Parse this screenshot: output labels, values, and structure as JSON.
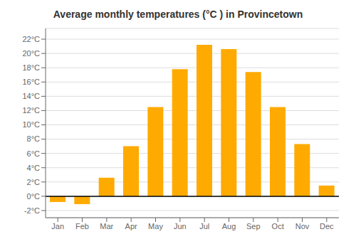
{
  "chart_data": {
    "type": "bar",
    "title": "Average monthly temperatures (°C ) in Provincetown",
    "categories": [
      "Jan",
      "Feb",
      "Mar",
      "Apr",
      "May",
      "Jun",
      "Jul",
      "Aug",
      "Sep",
      "Oct",
      "Nov",
      "Dec"
    ],
    "values": [
      -0.8,
      -1.1,
      2.6,
      7.0,
      12.5,
      17.8,
      21.2,
      20.6,
      17.4,
      12.5,
      7.3,
      1.5
    ],
    "color": "#FFAA00",
    "ylim": [
      -3.0,
      23.5
    ],
    "yticks": [
      {
        "value": -2,
        "label": "-2°C"
      },
      {
        "value": 0,
        "label": "0°C"
      },
      {
        "value": 2,
        "label": "2°C"
      },
      {
        "value": 4,
        "label": "4°C"
      },
      {
        "value": 6,
        "label": "6°C"
      },
      {
        "value": 8,
        "label": "8°C"
      },
      {
        "value": 10,
        "label": "10°C"
      },
      {
        "value": 12,
        "label": "12°C"
      },
      {
        "value": 14,
        "label": "14°C"
      },
      {
        "value": 16,
        "label": "16°C"
      },
      {
        "value": 18,
        "label": "18°C"
      },
      {
        "value": 20,
        "label": "20°C"
      },
      {
        "value": 22,
        "label": "22°C"
      }
    ],
    "grid": true
  }
}
